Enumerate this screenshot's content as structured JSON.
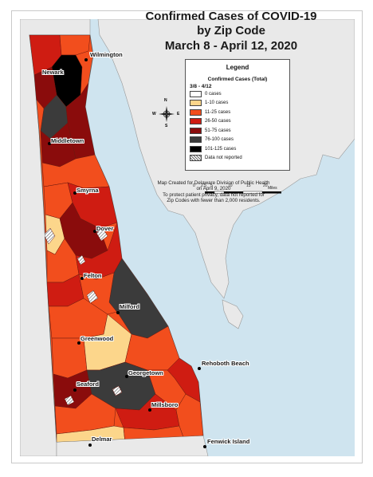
{
  "map": {
    "title_line1": "Confirmed Cases of COVID-19",
    "title_line2": "by Zip Code",
    "title_line3": "March 8 - April 12, 2020",
    "colors": {
      "water": "#cfe4ef",
      "land_other": "#e9e9e9",
      "c0": "#ffffff",
      "c1_10": "#fcd68b",
      "c11_25": "#f24e1d",
      "c26_50": "#cf1c12",
      "c51_75": "#8a0c0c",
      "c76_100": "#3b3b3b",
      "c101_125": "#000000"
    },
    "legend": {
      "title": "Legend",
      "subtitle": "Confirmed Cases (Total)",
      "range": "3/8 - 4/12",
      "items": [
        {
          "label": "0 cases",
          "color": "#ffffff"
        },
        {
          "label": "1-10 cases",
          "color": "#fcd68b"
        },
        {
          "label": "11-25 cases",
          "color": "#f24e1d"
        },
        {
          "label": "26-50 cases",
          "color": "#cf1c12"
        },
        {
          "label": "51-75 cases",
          "color": "#8a0c0c"
        },
        {
          "label": "76-100 cases",
          "color": "#3b3b3b"
        },
        {
          "label": "101-125 cases",
          "color": "#000000"
        },
        {
          "label": "Data not reported",
          "color": "hatch"
        }
      ]
    },
    "scale": {
      "ticks": [
        "0",
        "2.5",
        "5",
        "10",
        "15",
        "20"
      ],
      "unit": "Miles"
    },
    "note": {
      "line1": "Map Created for Delaware Division of Public Health",
      "line2": "on April 9, 2020",
      "line3": "To protect patient privacy, data not reported for",
      "line4": "Zip Codes with fewer than 2,000 residents."
    },
    "compass": {
      "n": "N",
      "s": "S",
      "e": "E",
      "w": "W"
    },
    "cities": [
      {
        "name": "Wilmington"
      },
      {
        "name": "Newark"
      },
      {
        "name": "Middletown"
      },
      {
        "name": "Smyrna"
      },
      {
        "name": "Dover"
      },
      {
        "name": "Felton"
      },
      {
        "name": "Milford"
      },
      {
        "name": "Greenwood"
      },
      {
        "name": "Georgetown"
      },
      {
        "name": "Rehoboth Beach"
      },
      {
        "name": "Seaford"
      },
      {
        "name": "Millsboro"
      },
      {
        "name": "Delmar"
      },
      {
        "name": "Fenwick Island"
      }
    ]
  }
}
